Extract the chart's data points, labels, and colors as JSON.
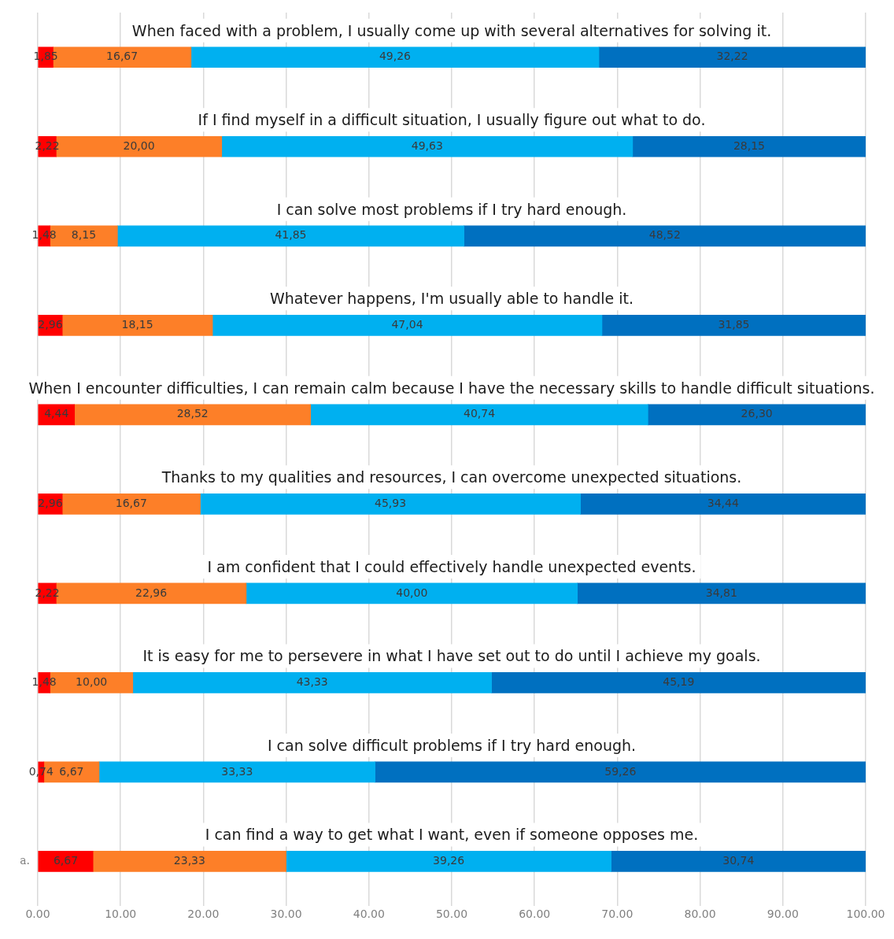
{
  "chart_data": {
    "type": "bar",
    "orientation": "horizontal",
    "stacked": true,
    "categories": [
      "When faced with a problem, I usually come up with several alternatives for solving it.",
      "If I find myself in a difficult situation, I usually figure out what to do.",
      "I can solve most problems if I try hard enough.",
      "Whatever happens, I'm usually able to handle it.",
      "When I encounter difficulties, I can remain calm because I have the necessary skills to handle difficult situations.",
      "Thanks to my qualities and resources, I can overcome unexpected situations.",
      "I am confident that I could effectively handle unexpected events.",
      "It is easy for me to persevere in what I have set out to do until I achieve my goals.",
      "I can solve difficult problems if I try hard enough.",
      "I can find a way to get what I want, even if someone opposes me."
    ],
    "xlim": [
      0,
      100
    ],
    "xticks": [
      {
        "value": 0,
        "label": "0.00"
      },
      {
        "value": 10,
        "label": "10.00"
      },
      {
        "value": 20,
        "label": "20.00"
      },
      {
        "value": 30,
        "label": "30.00"
      },
      {
        "value": 40,
        "label": "40.00"
      },
      {
        "value": 50,
        "label": "50.00"
      },
      {
        "value": 60,
        "label": "60.00"
      },
      {
        "value": 70,
        "label": "70.00"
      },
      {
        "value": 80,
        "label": "80.00"
      },
      {
        "value": 90,
        "label": "90.00"
      },
      {
        "value": 100,
        "label": "100.00"
      }
    ],
    "grid": "x",
    "legend": false,
    "annotations": [
      "a."
    ],
    "series": [
      {
        "color": "#ff0000",
        "values": [
          1.85,
          2.22,
          1.48,
          2.96,
          4.44,
          2.96,
          2.22,
          1.48,
          0.74,
          6.67
        ],
        "value_labels": [
          "1,85",
          "2,22",
          "1,48",
          "2,96",
          "4,44",
          "2,96",
          "2,22",
          "1,48",
          "0,74",
          "6,67"
        ]
      },
      {
        "color": "#fd7f28",
        "values": [
          16.67,
          20.0,
          8.15,
          18.15,
          28.52,
          16.67,
          22.96,
          10.0,
          6.67,
          23.33
        ],
        "value_labels": [
          "16,67",
          "20,00",
          "8,15",
          "18,15",
          "28,52",
          "16,67",
          "22,96",
          "10,00",
          "6,67",
          "23,33"
        ]
      },
      {
        "color": "#00b0f0",
        "values": [
          49.26,
          49.63,
          41.85,
          47.04,
          40.74,
          45.93,
          40.0,
          43.33,
          33.33,
          39.26
        ],
        "value_labels": [
          "49,26",
          "49,63",
          "41,85",
          "47,04",
          "40,74",
          "45,93",
          "40,00",
          "43,33",
          "33,33",
          "39,26"
        ]
      },
      {
        "color": "#0070c0",
        "values": [
          32.22,
          28.15,
          48.52,
          31.85,
          26.3,
          34.44,
          34.81,
          45.19,
          59.26,
          30.74
        ],
        "value_labels": [
          "32,22",
          "28,15",
          "48,52",
          "31,85",
          "26,30",
          "34,44",
          "34,81",
          "45,19",
          "59,26",
          "30,74"
        ]
      }
    ]
  }
}
